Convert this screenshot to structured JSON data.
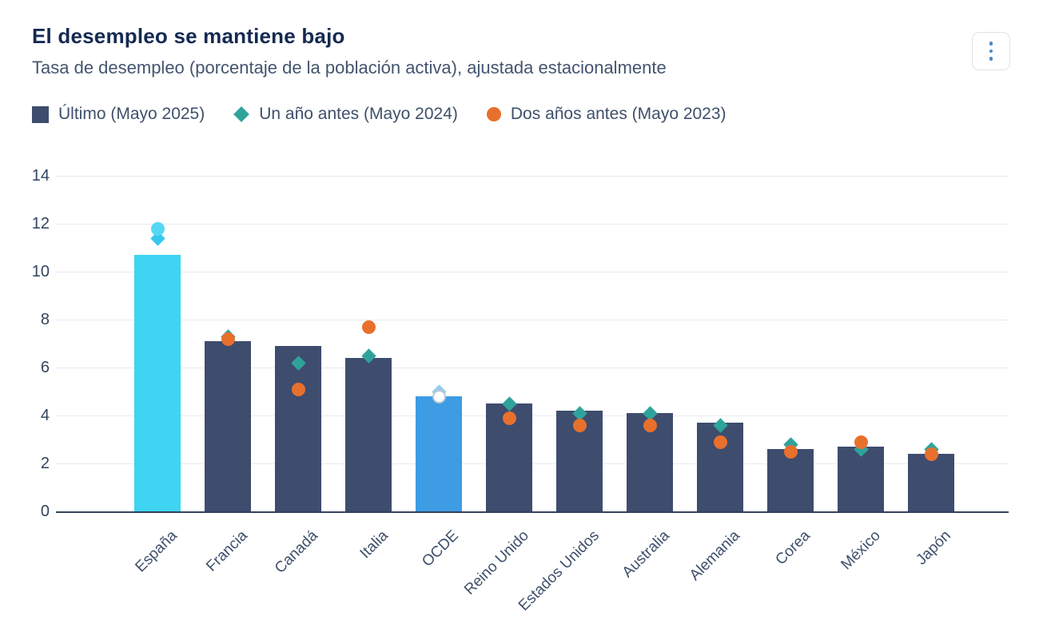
{
  "header": {
    "title": "El desempleo se mantiene bajo",
    "subtitle": "Tasa de desempleo (porcentaje de la población activa), ajustada estacionalmente",
    "menu_icon": "kebab-menu-icon"
  },
  "legend": [
    {
      "label": "Último (Mayo 2025)",
      "shape": "square",
      "color": "#3e4c6e"
    },
    {
      "label": "Un año antes (Mayo 2024)",
      "shape": "diamond",
      "color": "#2fa39b"
    },
    {
      "label": "Dos años antes (Mayo 2023)",
      "shape": "circle",
      "color": "#e8702d"
    }
  ],
  "colors": {
    "bar_default": "#3e4c6e",
    "bar_highlight_espana": "#3ed4f2",
    "bar_highlight_ocde": "#3d9ce4",
    "marker_year_before": "#2fa39b",
    "marker_two_years": "#e8702d",
    "title_text": "#152a52",
    "subtitle_text": "#44546f",
    "gridline": "#e7eaf0",
    "baseline": "#33415c"
  },
  "chart_data": {
    "type": "bar",
    "title": "El desempleo se mantiene bajo",
    "subtitle": "Tasa de desempleo (porcentaje de la población activa), ajustada estacionalmente",
    "categories": [
      "España",
      "Francia",
      "Canadá",
      "Italia",
      "OCDE",
      "Reino Unido",
      "Estados Unidos",
      "Australia",
      "Alemania",
      "Corea",
      "México",
      "Japón"
    ],
    "series": [
      {
        "name": "Último (Mayo 2025)",
        "render": "bar",
        "color": "#3e4c6e",
        "values": [
          10.7,
          7.1,
          6.9,
          6.4,
          4.8,
          4.5,
          4.2,
          4.1,
          3.7,
          2.6,
          2.7,
          2.4
        ]
      },
      {
        "name": "Un año antes (Mayo 2024)",
        "render": "diamond",
        "color": "#2fa39b",
        "values": [
          11.4,
          7.3,
          6.2,
          6.5,
          5.0,
          4.5,
          4.1,
          4.1,
          3.6,
          2.8,
          2.6,
          2.6
        ]
      },
      {
        "name": "Dos años antes (Mayo 2023)",
        "render": "circle",
        "color": "#e8702d",
        "values": [
          11.8,
          7.2,
          5.1,
          7.7,
          4.8,
          3.9,
          3.6,
          3.6,
          2.9,
          2.5,
          2.9,
          2.4
        ]
      }
    ],
    "highlight_bars": {
      "0": "#3ed4f2",
      "4": "#3d9ce4"
    },
    "marker_overrides": {
      "0": {
        "diamond": "#38c8ee",
        "circle": "#55d7f3"
      },
      "4": {
        "diamond": "#93cdee",
        "circle": "#ffffff"
      }
    },
    "ylim": [
      0,
      14
    ],
    "yticks": [
      0,
      2,
      4,
      6,
      8,
      10,
      12,
      14
    ],
    "grid": true,
    "legend_position": "top",
    "ylabel": "",
    "xlabel": ""
  }
}
